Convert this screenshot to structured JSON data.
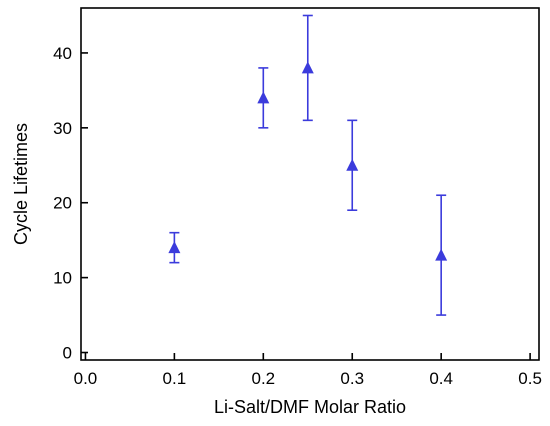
{
  "chart_data": {
    "type": "scatter",
    "title": "",
    "xlabel": "Li-Salt/DMF Molar Ratio",
    "ylabel": "Cycle Lifetimes",
    "xlim": [
      -0.005,
      0.51
    ],
    "ylim": [
      -1,
      46
    ],
    "x_ticks": [
      0.0,
      0.1,
      0.2,
      0.3,
      0.4,
      0.5
    ],
    "x_tick_labels": [
      "0.0",
      "0.1",
      "0.2",
      "0.3",
      "0.4",
      "0.5"
    ],
    "y_ticks": [
      0,
      10,
      20,
      30,
      40
    ],
    "y_tick_labels": [
      "0",
      "10",
      "20",
      "30",
      "40"
    ],
    "grid": false,
    "legend": "none",
    "marker": "triangle-up",
    "color": "#3b3bdc",
    "series": [
      {
        "points": [
          {
            "x": 0.1,
            "y": 14,
            "err_low": 12,
            "err_high": 16
          },
          {
            "x": 0.2,
            "y": 34,
            "err_low": 30,
            "err_high": 38
          },
          {
            "x": 0.25,
            "y": 38,
            "err_low": 31,
            "err_high": 45
          },
          {
            "x": 0.3,
            "y": 25,
            "err_low": 19,
            "err_high": 31
          },
          {
            "x": 0.4,
            "y": 13,
            "err_low": 5,
            "err_high": 21
          }
        ]
      }
    ]
  }
}
